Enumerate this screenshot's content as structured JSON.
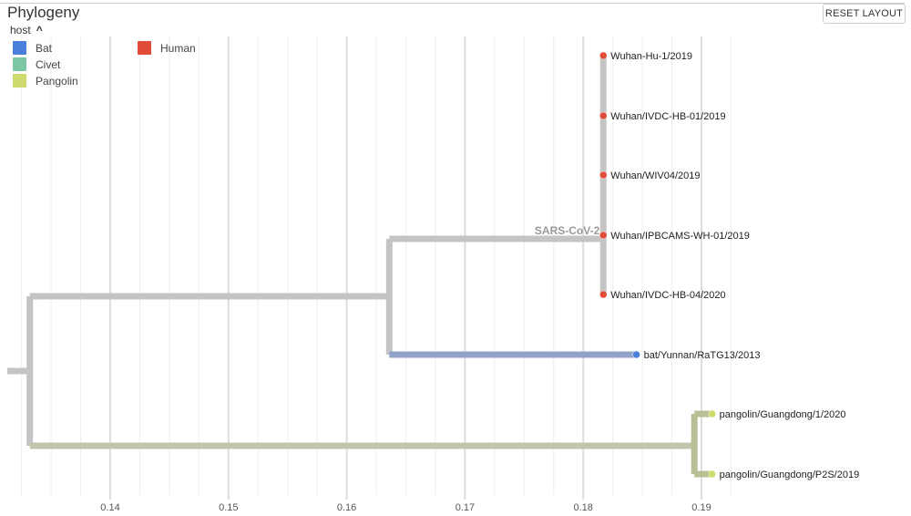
{
  "header": {
    "title": "Phylogeny",
    "reset_label": "RESET LAYOUT"
  },
  "legend": {
    "title": "host",
    "items": [
      {
        "label": "Bat",
        "color": "#4C7FDB"
      },
      {
        "label": "Civet",
        "color": "#7DC6A4"
      },
      {
        "label": "Pangolin",
        "color": "#CFDA6E"
      },
      {
        "label": "Human",
        "color": "#E04B3A"
      }
    ]
  },
  "axis": {
    "ticks": [
      0.14,
      0.15,
      0.16,
      0.17,
      0.18,
      0.19
    ],
    "tick_labels": [
      "0.14",
      "0.15",
      "0.16",
      "0.17",
      "0.18",
      "0.19"
    ],
    "minor_step": 0.0025,
    "range": [
      0.1325,
      0.1925
    ]
  },
  "tree": {
    "root_divergence": 0.1332,
    "clade_label": "SARS-CoV-2",
    "nodes": {
      "bat_sars": 0.1636,
      "sars_cov2": 0.1817,
      "pangolin": 0.1894
    },
    "tips": [
      {
        "name": "Wuhan-Hu-1/2019",
        "div": 0.1817,
        "host": "Human"
      },
      {
        "name": "Wuhan/IVDC-HB-01/2019",
        "div": 0.1817,
        "host": "Human"
      },
      {
        "name": "Wuhan/WIV04/2019",
        "div": 0.1817,
        "host": "Human"
      },
      {
        "name": "Wuhan/IPBCAMS-WH-01/2019",
        "div": 0.1817,
        "host": "Human"
      },
      {
        "name": "Wuhan/IVDC-HB-04/2020",
        "div": 0.1817,
        "host": "Human"
      },
      {
        "name": "bat/Yunnan/RaTG13/2013",
        "div": 0.1845,
        "host": "Bat"
      },
      {
        "name": "pangolin/Guangdong/1/2020",
        "div": 0.1909,
        "host": "Pangolin"
      },
      {
        "name": "pangolin/Guangdong/P2S/2019",
        "div": 0.1909,
        "host": "Pangolin"
      }
    ]
  }
}
